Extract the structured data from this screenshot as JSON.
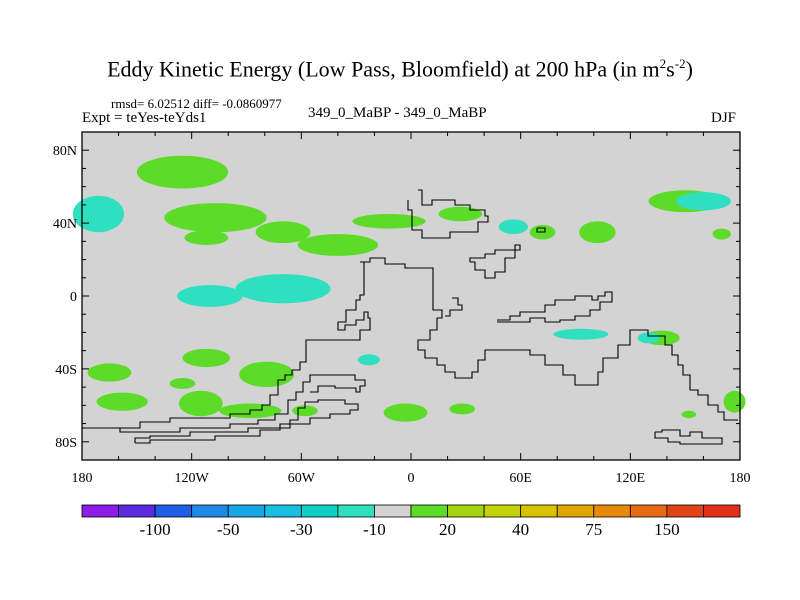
{
  "header": {
    "title_main": "Eddy Kinetic Energy (Low Pass, Bloomfield) at 200 hPa (in m",
    "unit_exp1": "2",
    "unit_mid": "s",
    "unit_exp2": "-2",
    "title_close": ")",
    "stats": "rmsd= 6.02512 diff= -0.0860977",
    "expt": "Expt = teYes-teYds1",
    "center_label": "349_0_MaBP - 349_0_MaBP",
    "season": "DJF"
  },
  "chart_data": {
    "type": "heatmap",
    "title": "Eddy Kinetic Energy (Low Pass, Bloomfield) at 200 hPa (in m^2 s^-2)",
    "xlabel": "",
    "ylabel": "",
    "xlim": [
      -180,
      180
    ],
    "ylim": [
      -90,
      90
    ],
    "x_ticks": [
      {
        "value": -180,
        "label": "180"
      },
      {
        "value": -120,
        "label": "120W"
      },
      {
        "value": -60,
        "label": "60W"
      },
      {
        "value": 0,
        "label": "0"
      },
      {
        "value": 60,
        "label": "60E"
      },
      {
        "value": 120,
        "label": "120E"
      },
      {
        "value": 180,
        "label": "180"
      }
    ],
    "y_ticks": [
      {
        "value": 80,
        "label": "80N"
      },
      {
        "value": 40,
        "label": "40N"
      },
      {
        "value": 0,
        "label": "0"
      },
      {
        "value": -40,
        "label": "40S"
      },
      {
        "value": -80,
        "label": "80S"
      }
    ],
    "background_color": "#d3d3d3",
    "colorbar": {
      "colors": [
        "#8c1ce6",
        "#5a2be0",
        "#1e5fe6",
        "#1e8ae8",
        "#16a6e6",
        "#18bfe0",
        "#10cfc6",
        "#2ee0bf",
        "#d3d3d3",
        "#5cdb28",
        "#a2d510",
        "#c4d20a",
        "#d9c200",
        "#e2a600",
        "#e8890a",
        "#e56a12",
        "#e04416",
        "#e0301a"
      ],
      "labels": [
        {
          "after_box": 2,
          "text": "-100"
        },
        {
          "after_box": 4,
          "text": "-50"
        },
        {
          "after_box": 6,
          "text": "-30"
        },
        {
          "after_box": 8,
          "text": "-10"
        },
        {
          "after_box": 10,
          "text": "20"
        },
        {
          "after_box": 12,
          "text": "40"
        },
        {
          "after_box": 14,
          "text": "75"
        },
        {
          "after_box": 16,
          "text": "150"
        }
      ]
    },
    "regions": [
      {
        "label": "positive",
        "color": "#5cdb28",
        "lon": -107,
        "lat": 43,
        "rlon": 28,
        "rlat": 8
      },
      {
        "label": "positive",
        "color": "#5cdb28",
        "lon": -125,
        "lat": 68,
        "rlon": 25,
        "rlat": 9
      },
      {
        "label": "positive",
        "color": "#5cdb28",
        "lon": -70,
        "lat": 35,
        "rlon": 15,
        "rlat": 6
      },
      {
        "label": "positive",
        "color": "#5cdb28",
        "lon": -40,
        "lat": 28,
        "rlon": 22,
        "rlat": 6
      },
      {
        "label": "positive",
        "color": "#5cdb28",
        "lon": -112,
        "lat": 32,
        "rlon": 12,
        "rlat": 4
      },
      {
        "label": "positive",
        "color": "#5cdb28",
        "lon": -12,
        "lat": 41,
        "rlon": 20,
        "rlat": 4
      },
      {
        "label": "positive",
        "color": "#5cdb28",
        "lon": 27,
        "lat": 45,
        "rlon": 12,
        "rlat": 4
      },
      {
        "label": "positive",
        "color": "#5cdb28",
        "lon": 72,
        "lat": 35,
        "rlon": 7,
        "rlat": 4
      },
      {
        "label": "positive",
        "color": "#5cdb28",
        "lon": 102,
        "lat": 35,
        "rlon": 10,
        "rlat": 6
      },
      {
        "label": "positive",
        "color": "#5cdb28",
        "lon": 150,
        "lat": 52,
        "rlon": 20,
        "rlat": 6
      },
      {
        "label": "positive",
        "color": "#5cdb28",
        "lon": 170,
        "lat": 34,
        "rlon": 5,
        "rlat": 3
      },
      {
        "label": "positive",
        "color": "#5cdb28",
        "lon": -112,
        "lat": -34,
        "rlon": 13,
        "rlat": 5
      },
      {
        "label": "positive",
        "color": "#5cdb28",
        "lon": -165,
        "lat": -42,
        "rlon": 12,
        "rlat": 5
      },
      {
        "label": "positive",
        "color": "#5cdb28",
        "lon": -125,
        "lat": -48,
        "rlon": 7,
        "rlat": 3
      },
      {
        "label": "positive",
        "color": "#5cdb28",
        "lon": -158,
        "lat": -58,
        "rlon": 14,
        "rlat": 5
      },
      {
        "label": "positive",
        "color": "#5cdb28",
        "lon": -115,
        "lat": -59,
        "rlon": 12,
        "rlat": 7
      },
      {
        "label": "positive",
        "color": "#5cdb28",
        "lon": -79,
        "lat": -43,
        "rlon": 15,
        "rlat": 7
      },
      {
        "label": "positive",
        "color": "#5cdb28",
        "lon": -88,
        "lat": -63,
        "rlon": 17,
        "rlat": 4
      },
      {
        "label": "positive",
        "color": "#5cdb28",
        "lon": -58,
        "lat": -63,
        "rlon": 7,
        "rlat": 3
      },
      {
        "label": "positive",
        "color": "#5cdb28",
        "lon": -3,
        "lat": -64,
        "rlon": 12,
        "rlat": 5
      },
      {
        "label": "positive",
        "color": "#5cdb28",
        "lon": 28,
        "lat": -62,
        "rlon": 7,
        "rlat": 3
      },
      {
        "label": "positive",
        "color": "#5cdb28",
        "lon": 137,
        "lat": -23,
        "rlon": 10,
        "rlat": 4
      },
      {
        "label": "positive",
        "color": "#5cdb28",
        "lon": 177,
        "lat": -58,
        "rlon": 6,
        "rlat": 6
      },
      {
        "label": "positive",
        "color": "#5cdb28",
        "lon": 152,
        "lat": -65,
        "rlon": 4,
        "rlat": 2
      },
      {
        "label": "negative",
        "color": "#2ee0bf",
        "lon": -171,
        "lat": 45,
        "rlon": 14,
        "rlat": 10
      },
      {
        "label": "negative",
        "color": "#2ee0bf",
        "lon": -70,
        "lat": 4,
        "rlon": 26,
        "rlat": 8
      },
      {
        "label": "negative",
        "color": "#2ee0bf",
        "lon": -110,
        "lat": 0,
        "rlon": 18,
        "rlat": 6
      },
      {
        "label": "negative",
        "color": "#2ee0bf",
        "lon": 56,
        "lat": 38,
        "rlon": 8,
        "rlat": 4
      },
      {
        "label": "negative",
        "color": "#2ee0bf",
        "lon": 160,
        "lat": 52,
        "rlon": 15,
        "rlat": 5
      },
      {
        "label": "negative",
        "color": "#2ee0bf",
        "lon": 93,
        "lat": -21,
        "rlon": 15,
        "rlat": 3
      },
      {
        "label": "negative",
        "color": "#2ee0bf",
        "lon": -23,
        "lat": -35,
        "rlon": 6,
        "rlat": 3
      },
      {
        "label": "negative",
        "color": "#2ee0bf",
        "lon": 130,
        "lat": -23,
        "rlon": 6,
        "rlat": 3
      }
    ]
  }
}
